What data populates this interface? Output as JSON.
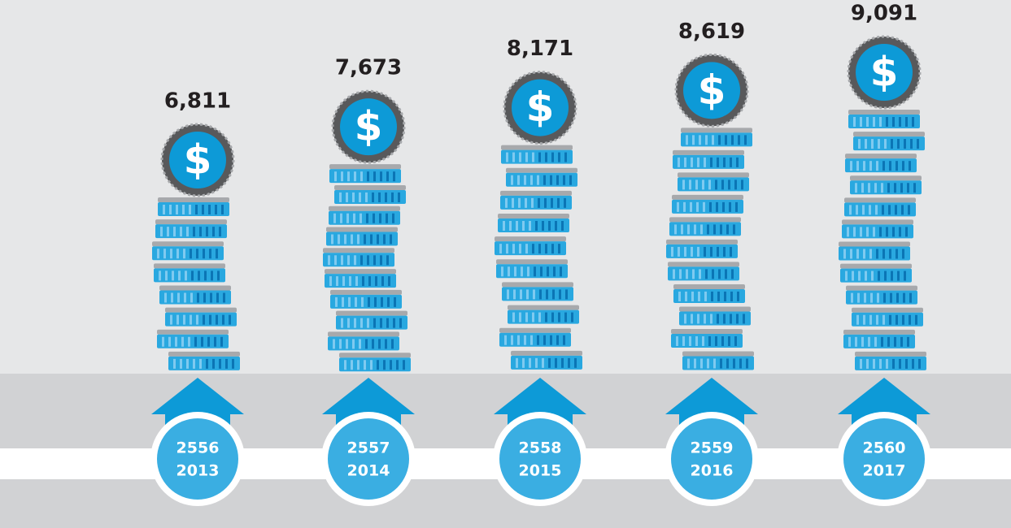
{
  "chart_data": {
    "type": "coin-stack",
    "categories": [
      [
        "2556",
        "2013"
      ],
      [
        "2557",
        "2014"
      ],
      [
        "2558",
        "2015"
      ],
      [
        "2559",
        "2016"
      ],
      [
        "2560",
        "2017"
      ]
    ],
    "values": [
      6811,
      7673,
      8171,
      8619,
      9091
    ],
    "value_labels": [
      "6,811",
      "7,673",
      "8,171",
      "8,619",
      "9,091"
    ],
    "coin_symbol": "$",
    "color": "#29a8e0"
  }
}
